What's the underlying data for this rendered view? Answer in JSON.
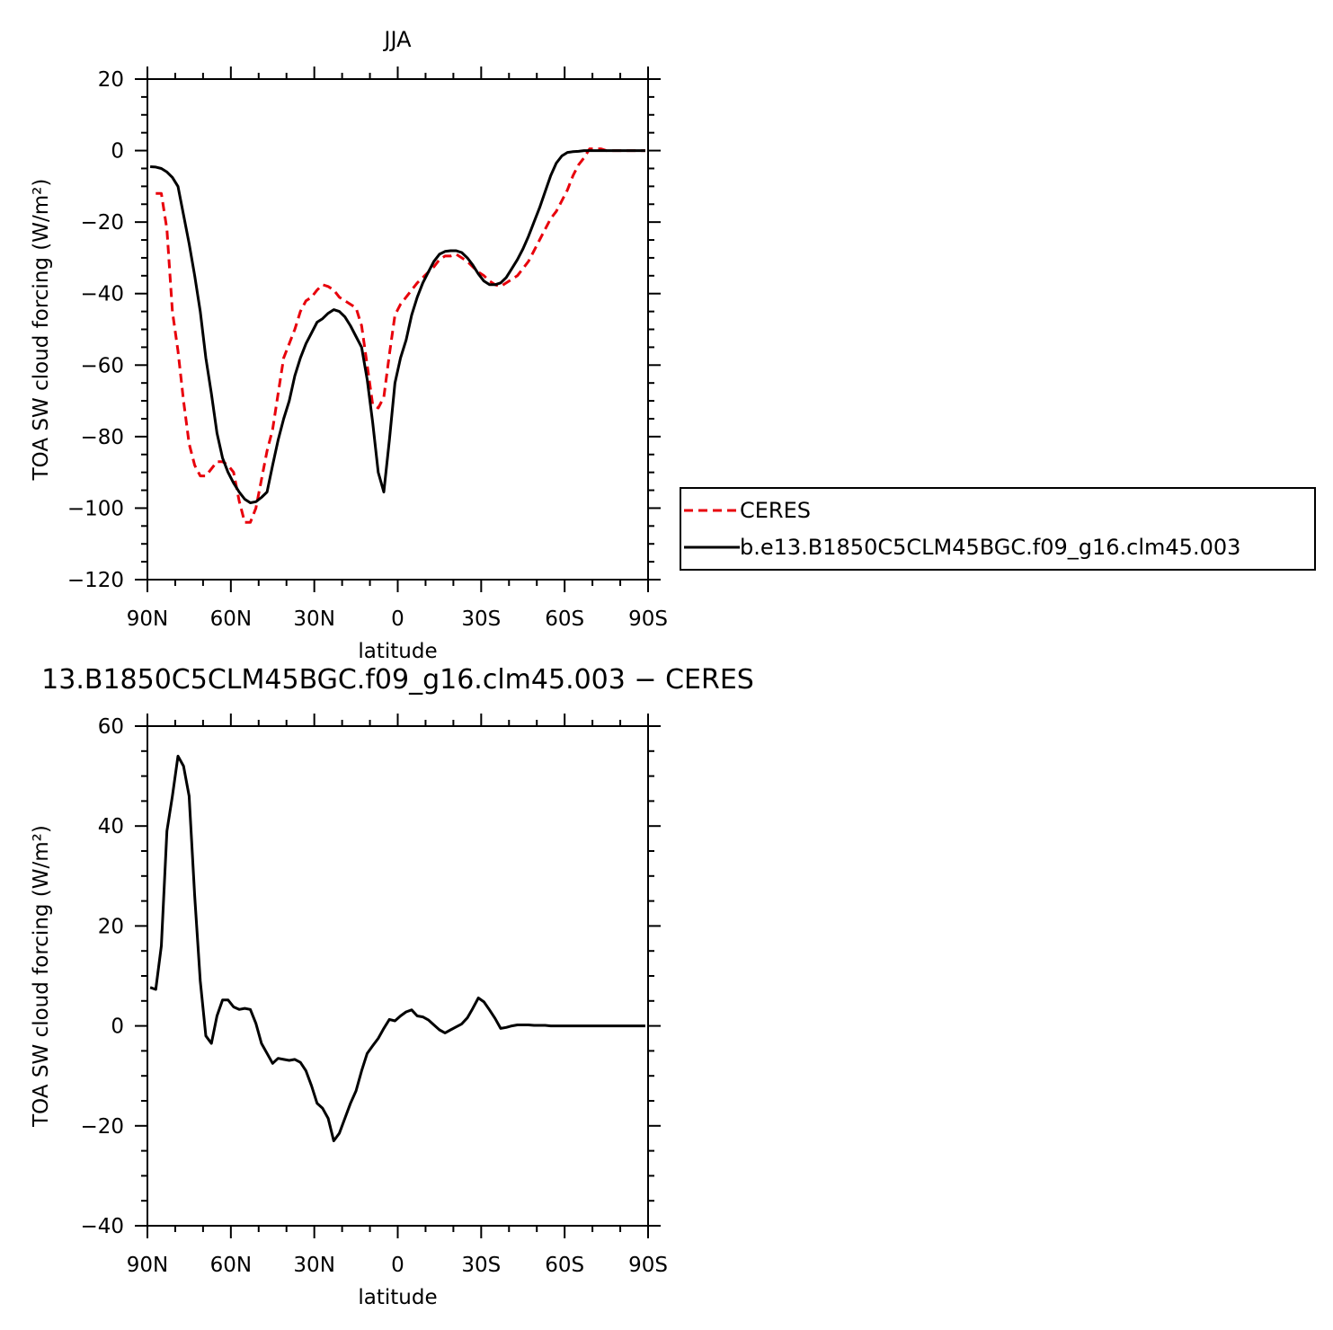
{
  "chart_data": [
    {
      "type": "line",
      "title": "JJA",
      "xlabel": "latitude",
      "ylabel": "TOA SW cloud forcing (W/m²)",
      "xlim": [
        90,
        -90
      ],
      "ylim": [
        -120,
        20
      ],
      "x_ticks": [
        {
          "value": 90,
          "label": "90N"
        },
        {
          "value": 60,
          "label": "60N"
        },
        {
          "value": 30,
          "label": "30N"
        },
        {
          "value": 0,
          "label": "0"
        },
        {
          "value": -30,
          "label": "30S"
        },
        {
          "value": -60,
          "label": "60S"
        },
        {
          "value": -90,
          "label": "90S"
        }
      ],
      "y_ticks": [
        20,
        0,
        -20,
        -40,
        -60,
        -80,
        -100,
        -120
      ],
      "legend": {
        "position": "right"
      },
      "series": [
        {
          "name": "CERES",
          "color": "#e8000b",
          "style": "dashed",
          "x": [
            87,
            85,
            83,
            81,
            79,
            77,
            75,
            73,
            71,
            69,
            67,
            65,
            63,
            61,
            59,
            57,
            55,
            53,
            51,
            49,
            47,
            45,
            43,
            41,
            39,
            37,
            35,
            33,
            31,
            29,
            27,
            25,
            23,
            21,
            19,
            17,
            15,
            13,
            11,
            9,
            7,
            5,
            3,
            1,
            -1,
            -3,
            -5,
            -7,
            -9,
            -11,
            -13,
            -15,
            -17,
            -19,
            -21,
            -23,
            -25,
            -27,
            -29,
            -31,
            -33,
            -35,
            -37,
            -39,
            -41,
            -43,
            -45,
            -47,
            -49,
            -51,
            -53,
            -55,
            -57,
            -59,
            -61,
            -63,
            -65,
            -67,
            -69,
            -71,
            -73,
            -75,
            -77,
            -79,
            -81,
            -83,
            -85,
            -87,
            -89
          ],
          "y": [
            -12,
            -12,
            -22,
            -45,
            -56,
            -70,
            -82,
            -88,
            -91,
            -91,
            -89,
            -87,
            -87,
            -88,
            -90,
            -98,
            -104,
            -104,
            -100,
            -92,
            -84,
            -78,
            -68,
            -58,
            -54,
            -50,
            -45,
            -42,
            -41,
            -39,
            -37.5,
            -38,
            -39,
            -41,
            -42,
            -43,
            -44,
            -49,
            -60,
            -71,
            -72,
            -69,
            -57,
            -46,
            -43,
            -41,
            -39,
            -37,
            -35.5,
            -34,
            -32.5,
            -30.5,
            -29.5,
            -29.5,
            -29,
            -30,
            -31,
            -32.5,
            -34,
            -35,
            -36.5,
            -37.5,
            -38,
            -37,
            -36,
            -35,
            -33,
            -31,
            -28,
            -25,
            -22,
            -19,
            -17,
            -14,
            -11,
            -7,
            -4,
            -2,
            0.5,
            0.5,
            0.5,
            0,
            0,
            0,
            0,
            0,
            0,
            0,
            0
          ]
        },
        {
          "name": "b.e13.B1850C5CLM45BGC.f09_g16.clm45.003",
          "color": "#000000",
          "style": "solid",
          "x": [
            89,
            87,
            85,
            83,
            81,
            79,
            77,
            75,
            73,
            71,
            69,
            67,
            65,
            63,
            61,
            59,
            57,
            55,
            53,
            51,
            49,
            47,
            45,
            43,
            41,
            39,
            37,
            35,
            33,
            31,
            29,
            27,
            25,
            23,
            21,
            19,
            17,
            15,
            13,
            11,
            9,
            7,
            5,
            3,
            1,
            -1,
            -3,
            -5,
            -7,
            -9,
            -11,
            -13,
            -15,
            -17,
            -19,
            -21,
            -23,
            -25,
            -27,
            -29,
            -31,
            -33,
            -35,
            -37,
            -39,
            -41,
            -43,
            -45,
            -47,
            -49,
            -51,
            -53,
            -55,
            -57,
            -59,
            -61,
            -63,
            -65,
            -67,
            -69,
            -71,
            -73,
            -75,
            -77,
            -79,
            -81,
            -83,
            -85,
            -87,
            -89
          ],
          "y": [
            -4.5,
            -4.6,
            -5,
            -6,
            -7.5,
            -10,
            -18,
            -26,
            -35,
            -45,
            -58,
            -68,
            -79,
            -86,
            -90,
            -93,
            -95.5,
            -97.5,
            -98.5,
            -98.2,
            -97,
            -95.5,
            -88,
            -81,
            -75,
            -70,
            -63,
            -58,
            -54,
            -51,
            -48,
            -47,
            -45.5,
            -44.5,
            -45,
            -46.5,
            -49,
            -52,
            -55,
            -64,
            -76,
            -90,
            -95.5,
            -81,
            -65,
            -58,
            -53,
            -46,
            -41,
            -37,
            -34,
            -31,
            -29,
            -28.2,
            -28,
            -28,
            -28.5,
            -30,
            -32,
            -34.5,
            -36.5,
            -37.5,
            -37.5,
            -37,
            -35.5,
            -33,
            -30.5,
            -27.5,
            -24,
            -20,
            -16,
            -11.5,
            -7,
            -3.5,
            -1.5,
            -0.5,
            -0.3,
            -0.2,
            0,
            0,
            0,
            0,
            0,
            0,
            0,
            0,
            0,
            0,
            0,
            0
          ]
        }
      ]
    },
    {
      "type": "line",
      "title": "13.B1850C5CLM45BGC.f09_g16.clm45.003 − CERES",
      "xlabel": "latitude",
      "ylabel": "TOA SW cloud forcing (W/m²)",
      "xlim": [
        90,
        -90
      ],
      "ylim": [
        -40,
        60
      ],
      "x_ticks": [
        {
          "value": 90,
          "label": "90N"
        },
        {
          "value": 60,
          "label": "60N"
        },
        {
          "value": 30,
          "label": "30N"
        },
        {
          "value": 0,
          "label": "0"
        },
        {
          "value": -30,
          "label": "30S"
        },
        {
          "value": -60,
          "label": "60S"
        },
        {
          "value": -90,
          "label": "90S"
        }
      ],
      "y_ticks": [
        60,
        40,
        20,
        0,
        -20,
        -40
      ],
      "series": [
        {
          "color": "#000000",
          "style": "solid",
          "x": [
            89,
            87,
            85,
            83,
            81,
            79,
            77,
            75,
            73,
            71,
            69,
            67,
            65,
            63,
            61,
            59,
            57,
            55,
            53,
            51,
            49,
            47,
            45,
            43,
            41,
            39,
            37,
            35,
            33,
            31,
            29,
            27,
            25,
            23,
            21,
            19,
            17,
            15,
            13,
            11,
            9,
            7,
            5,
            3,
            1,
            -1,
            -3,
            -5,
            -7,
            -9,
            -11,
            -13,
            -15,
            -17,
            -19,
            -21,
            -23,
            -25,
            -27,
            -29,
            -31,
            -33,
            -35,
            -37,
            -39,
            -41,
            -43,
            -45,
            -47,
            -49,
            -51,
            -53,
            -55,
            -57,
            -59,
            -61,
            -63,
            -65,
            -67,
            -69,
            -71,
            -73,
            -75,
            -77,
            -79,
            -81,
            -83,
            -85,
            -87,
            -89
          ],
          "y": [
            7.7,
            7.3,
            16,
            39,
            46,
            54,
            52,
            46,
            26,
            9,
            -2,
            -3.5,
            2,
            5.2,
            5.2,
            3.8,
            3.3,
            3.5,
            3.3,
            0.5,
            -3.5,
            -5.5,
            -7.5,
            -6.5,
            -6.7,
            -6.9,
            -6.7,
            -7.3,
            -9,
            -12,
            -15.5,
            -16.5,
            -18.5,
            -23,
            -21.5,
            -18.5,
            -15.5,
            -13,
            -9,
            -5.5,
            -4,
            -2.5,
            -0.5,
            1.3,
            1,
            2,
            2.8,
            3.2,
            2,
            1.8,
            1.2,
            0.2,
            -0.8,
            -1.4,
            -0.8,
            -0.2,
            0.4,
            1.6,
            3.5,
            5.6,
            4.8,
            3.2,
            1.5,
            -0.5,
            -0.3,
            0,
            0.2,
            0.2,
            0.2,
            0.1,
            0.1,
            0.1,
            0,
            0,
            0,
            0,
            0,
            0,
            0,
            0,
            0,
            0,
            0,
            0,
            0,
            0,
            0,
            0,
            0,
            0
          ]
        }
      ]
    }
  ]
}
